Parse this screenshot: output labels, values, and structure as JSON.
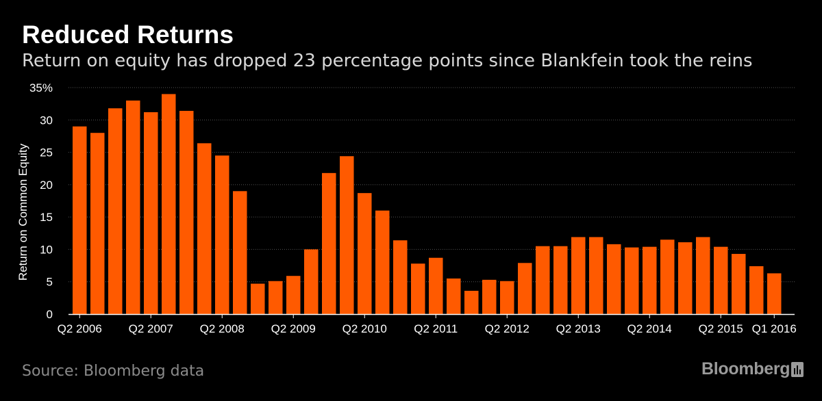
{
  "title": "Reduced Returns",
  "subtitle": "Return on equity has dropped 23 percentage points since Blankfein took the reins",
  "source": "Source: Bloomberg data",
  "brand": "Bloomberg",
  "colors": {
    "bar": "#ff5a00",
    "background": "#000000",
    "grid": "#555555",
    "text": "#ffffff"
  },
  "chart_data": {
    "type": "bar",
    "title": "Reduced Returns",
    "ylabel": "Return on Common Equity",
    "xlabel": "",
    "ylim": [
      0,
      35
    ],
    "yticks": [
      0,
      5,
      10,
      15,
      20,
      25,
      30,
      35
    ],
    "ytick_labels": [
      "0",
      "5",
      "10",
      "15",
      "20",
      "25",
      "30",
      "35%"
    ],
    "grid": true,
    "categories": [
      "Q2 2006",
      "Q3 2006",
      "Q4 2006",
      "Q1 2007",
      "Q2 2007",
      "Q3 2007",
      "Q4 2007",
      "Q1 2008",
      "Q2 2008",
      "Q3 2008",
      "Q4 2008",
      "Q1 2009",
      "Q2 2009",
      "Q3 2009",
      "Q4 2009",
      "Q1 2010",
      "Q2 2010",
      "Q3 2010",
      "Q4 2010",
      "Q1 2011",
      "Q2 2011",
      "Q3 2011",
      "Q4 2011",
      "Q1 2012",
      "Q2 2012",
      "Q3 2012",
      "Q4 2012",
      "Q1 2013",
      "Q2 2013",
      "Q3 2013",
      "Q4 2013",
      "Q1 2014",
      "Q2 2014",
      "Q3 2014",
      "Q4 2014",
      "Q1 2015",
      "Q2 2015",
      "Q3 2015",
      "Q4 2015",
      "Q1 2016"
    ],
    "values": [
      29.0,
      28.0,
      31.8,
      33.0,
      31.2,
      34.0,
      31.4,
      26.4,
      24.5,
      19.0,
      4.7,
      5.1,
      5.9,
      10.0,
      21.8,
      24.4,
      18.7,
      16.0,
      11.4,
      7.8,
      8.7,
      5.5,
      3.6,
      5.3,
      5.1,
      7.9,
      10.5,
      10.5,
      11.9,
      11.9,
      10.8,
      10.3,
      10.4,
      11.5,
      11.1,
      11.9,
      10.4,
      9.3,
      7.4,
      6.3
    ],
    "xtick_labels": [
      {
        "index": 0,
        "label": "Q2 2006"
      },
      {
        "index": 4,
        "label": "Q2 2007"
      },
      {
        "index": 8,
        "label": "Q2 2008"
      },
      {
        "index": 12,
        "label": "Q2 2009"
      },
      {
        "index": 16,
        "label": "Q2 2010"
      },
      {
        "index": 20,
        "label": "Q2 2011"
      },
      {
        "index": 24,
        "label": "Q2 2012"
      },
      {
        "index": 28,
        "label": "Q2 2013"
      },
      {
        "index": 32,
        "label": "Q2 2014"
      },
      {
        "index": 36,
        "label": "Q2 2015"
      },
      {
        "index": 39,
        "label": "Q1 2016"
      }
    ]
  }
}
